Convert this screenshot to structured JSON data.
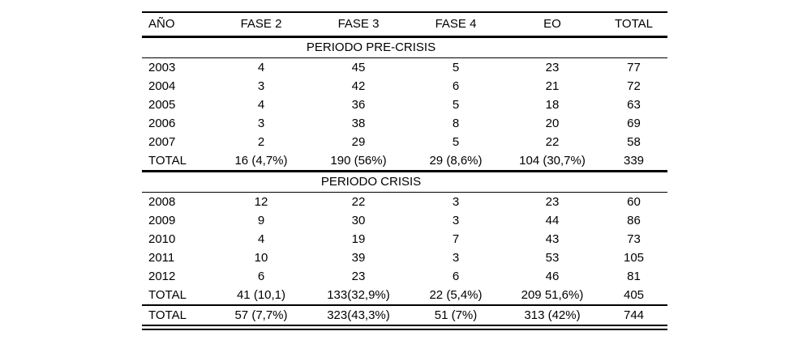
{
  "table": {
    "columns": [
      "AÑO",
      "FASE 2",
      "FASE 3",
      "FASE 4",
      "EO",
      "TOTAL"
    ],
    "sections": [
      {
        "label": "PERIODO PRE-CRISIS",
        "rows": [
          [
            "2003",
            "4",
            "45",
            "5",
            "23",
            "77"
          ],
          [
            "2004",
            "3",
            "42",
            "6",
            "21",
            "72"
          ],
          [
            "2005",
            "4",
            "36",
            "5",
            "18",
            "63"
          ],
          [
            "2006",
            "3",
            "38",
            "8",
            "20",
            "69"
          ],
          [
            "2007",
            "2",
            "29",
            "5",
            "22",
            "58"
          ]
        ],
        "total_row": [
          "TOTAL",
          "16 (4,7%)",
          "190 (56%)",
          "29 (8,6%)",
          "104 (30,7%)",
          "339"
        ]
      },
      {
        "label": "PERIODO CRISIS",
        "rows": [
          [
            "2008",
            "12",
            "22",
            "3",
            "23",
            "60"
          ],
          [
            "2009",
            "9",
            "30",
            "3",
            "44",
            "86"
          ],
          [
            "2010",
            "4",
            "19",
            "7",
            "43",
            "73"
          ],
          [
            "2011",
            "10",
            "39",
            "3",
            "53",
            "105"
          ],
          [
            "2012",
            "6",
            "23",
            "6",
            "46",
            "81"
          ]
        ],
        "total_row": [
          "TOTAL",
          "41 (10,1)",
          "133(32,9%)",
          "22 (5,4%)",
          "209 51,6%)",
          "405"
        ]
      }
    ],
    "grand_total_row": [
      "TOTAL",
      "57 (7,7%)",
      "323(43,3%)",
      "51 (7%)",
      "313 (42%)",
      "744"
    ]
  }
}
